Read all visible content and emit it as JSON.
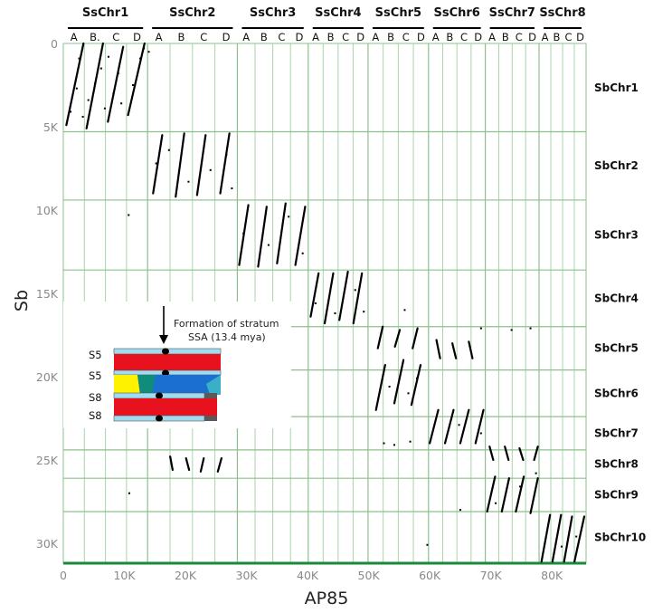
{
  "chart_data": {
    "type": "scatter",
    "xlabel": "AP85",
    "ylabel": "Sb",
    "xlim": [
      0,
      85600
    ],
    "ylim": [
      0,
      31200
    ],
    "y_inverted": true,
    "x_ticks": [
      {
        "value": 0,
        "label": "0"
      },
      {
        "value": 10000,
        "label": "10K"
      },
      {
        "value": 20000,
        "label": "20K"
      },
      {
        "value": 30000,
        "label": "30K"
      },
      {
        "value": 40000,
        "label": "40K"
      },
      {
        "value": 50000,
        "label": "50K"
      },
      {
        "value": 60000,
        "label": "60K"
      },
      {
        "value": 70000,
        "label": "70K"
      },
      {
        "value": 80000,
        "label": "80K"
      }
    ],
    "y_ticks": [
      {
        "value": 0,
        "label": "0"
      },
      {
        "value": 5000,
        "label": "5K"
      },
      {
        "value": 10000,
        "label": "10K"
      },
      {
        "value": 15000,
        "label": "15K"
      },
      {
        "value": 20000,
        "label": "20K"
      },
      {
        "value": 25000,
        "label": "25K"
      },
      {
        "value": 30000,
        "label": "30K"
      }
    ],
    "column_groups": [
      {
        "name": "SsChr1",
        "x_start": 0,
        "x_end": 13800,
        "subs": [
          "A",
          "B.",
          "C",
          "D"
        ]
      },
      {
        "name": "SsChr2",
        "x_start": 13800,
        "x_end": 28500,
        "subs": [
          "A",
          "B",
          "C",
          "D"
        ]
      },
      {
        "name": "SsChr3",
        "x_start": 28500,
        "x_end": 40100,
        "subs": [
          "A",
          "B",
          "C",
          "D"
        ]
      },
      {
        "name": "SsChr4",
        "x_start": 40100,
        "x_end": 49900,
        "subs": [
          "A",
          "B",
          "C",
          "D"
        ]
      },
      {
        "name": "SsChr5",
        "x_start": 49900,
        "x_end": 59800,
        "subs": [
          "A",
          "B",
          "C",
          "D"
        ]
      },
      {
        "name": "SsChr6",
        "x_start": 59800,
        "x_end": 69100,
        "subs": [
          "A",
          "B",
          "C",
          "D"
        ]
      },
      {
        "name": "SsChr7",
        "x_start": 69100,
        "x_end": 77900,
        "subs": [
          "A",
          "B",
          "C",
          "D"
        ]
      },
      {
        "name": "SsChr8",
        "x_start": 77900,
        "x_end": 85600,
        "subs": [
          "A",
          "B",
          "C",
          "D"
        ]
      }
    ],
    "row_groups": [
      {
        "name": "SbChr1",
        "y_start": 0,
        "y_end": 5300
      },
      {
        "name": "SbChr2",
        "y_start": 5300,
        "y_end": 9400
      },
      {
        "name": "SbChr3",
        "y_start": 9400,
        "y_end": 13600
      },
      {
        "name": "SbChr4",
        "y_start": 13600,
        "y_end": 17000
      },
      {
        "name": "SbChr5",
        "y_start": 17000,
        "y_end": 19600
      },
      {
        "name": "SbChr6",
        "y_start": 19600,
        "y_end": 22400
      },
      {
        "name": "SbChr7",
        "y_start": 22400,
        "y_end": 24400
      },
      {
        "name": "SbChr8",
        "y_start": 24400,
        "y_end": 26100
      },
      {
        "name": "SbChr9",
        "y_start": 26100,
        "y_end": 28100
      },
      {
        "name": "SbChr10",
        "y_start": 28100,
        "y_end": 31200
      }
    ],
    "segments": [
      {
        "x1": 500,
        "y1": 4900,
        "x2": 3300,
        "y2": 0
      },
      {
        "x1": 3800,
        "y1": 5100,
        "x2": 6500,
        "y2": 0
      },
      {
        "x1": 7300,
        "y1": 4700,
        "x2": 9800,
        "y2": 200
      },
      {
        "x1": 10600,
        "y1": 4300,
        "x2": 13300,
        "y2": 0
      },
      {
        "x1": 14700,
        "y1": 9000,
        "x2": 16200,
        "y2": 5500
      },
      {
        "x1": 18400,
        "y1": 9200,
        "x2": 19800,
        "y2": 5400
      },
      {
        "x1": 21900,
        "y1": 9100,
        "x2": 23300,
        "y2": 5500
      },
      {
        "x1": 25700,
        "y1": 9000,
        "x2": 27200,
        "y2": 5400
      },
      {
        "x1": 28800,
        "y1": 13300,
        "x2": 30300,
        "y2": 9700
      },
      {
        "x1": 31900,
        "y1": 13400,
        "x2": 33300,
        "y2": 9800
      },
      {
        "x1": 35000,
        "y1": 13200,
        "x2": 36400,
        "y2": 9600
      },
      {
        "x1": 38000,
        "y1": 13300,
        "x2": 39600,
        "y2": 9800
      },
      {
        "x1": 40500,
        "y1": 16400,
        "x2": 41800,
        "y2": 13800
      },
      {
        "x1": 42800,
        "y1": 16800,
        "x2": 44200,
        "y2": 13800
      },
      {
        "x1": 45200,
        "y1": 16600,
        "x2": 46600,
        "y2": 13700
      },
      {
        "x1": 47500,
        "y1": 16800,
        "x2": 48900,
        "y2": 13800
      },
      {
        "x1": 51200,
        "y1": 22000,
        "x2": 52700,
        "y2": 19300
      },
      {
        "x1": 54200,
        "y1": 21600,
        "x2": 55700,
        "y2": 19000
      },
      {
        "x1": 57000,
        "y1": 21700,
        "x2": 58500,
        "y2": 19300
      },
      {
        "x1": 51500,
        "y1": 18300,
        "x2": 52300,
        "y2": 17000
      },
      {
        "x1": 54300,
        "y1": 18200,
        "x2": 55100,
        "y2": 17200
      },
      {
        "x1": 57200,
        "y1": 18300,
        "x2": 58000,
        "y2": 17100
      },
      {
        "x1": 61100,
        "y1": 17800,
        "x2": 61700,
        "y2": 18900
      },
      {
        "x1": 63700,
        "y1": 18000,
        "x2": 64300,
        "y2": 18900
      },
      {
        "x1": 66400,
        "y1": 17900,
        "x2": 67000,
        "y2": 18900
      },
      {
        "x1": 60000,
        "y1": 24000,
        "x2": 61400,
        "y2": 22000
      },
      {
        "x1": 62500,
        "y1": 24000,
        "x2": 63900,
        "y2": 22000
      },
      {
        "x1": 65000,
        "y1": 24000,
        "x2": 66400,
        "y2": 22000
      },
      {
        "x1": 67500,
        "y1": 24000,
        "x2": 68800,
        "y2": 22000
      },
      {
        "x1": 69800,
        "y1": 24200,
        "x2": 70400,
        "y2": 25000
      },
      {
        "x1": 72300,
        "y1": 24200,
        "x2": 72900,
        "y2": 25000
      },
      {
        "x1": 74700,
        "y1": 24300,
        "x2": 75300,
        "y2": 25000
      },
      {
        "x1": 77100,
        "y1": 25000,
        "x2": 77700,
        "y2": 24200
      },
      {
        "x1": 69400,
        "y1": 28100,
        "x2": 70700,
        "y2": 26000
      },
      {
        "x1": 71800,
        "y1": 28100,
        "x2": 73000,
        "y2": 26100
      },
      {
        "x1": 74100,
        "y1": 28100,
        "x2": 75400,
        "y2": 26000
      },
      {
        "x1": 76500,
        "y1": 28200,
        "x2": 77700,
        "y2": 26100
      },
      {
        "x1": 78300,
        "y1": 31100,
        "x2": 79700,
        "y2": 28300
      },
      {
        "x1": 80100,
        "y1": 31100,
        "x2": 81500,
        "y2": 28300
      },
      {
        "x1": 82000,
        "y1": 31100,
        "x2": 83300,
        "y2": 28400
      },
      {
        "x1": 83700,
        "y1": 31100,
        "x2": 85300,
        "y2": 28400
      },
      {
        "x1": 17500,
        "y1": 24800,
        "x2": 17900,
        "y2": 25600
      },
      {
        "x1": 20100,
        "y1": 24900,
        "x2": 20600,
        "y2": 25600
      },
      {
        "x1": 22500,
        "y1": 25700,
        "x2": 23000,
        "y2": 24900
      },
      {
        "x1": 25300,
        "y1": 25700,
        "x2": 25900,
        "y2": 24900
      }
    ],
    "points": [
      {
        "x": 1200,
        "y": 4100
      },
      {
        "x": 2200,
        "y": 2700
      },
      {
        "x": 4100,
        "y": 3400
      },
      {
        "x": 5200,
        "y": 2400
      },
      {
        "x": 6200,
        "y": 1500
      },
      {
        "x": 7400,
        "y": 800
      },
      {
        "x": 8200,
        "y": 3000
      },
      {
        "x": 9000,
        "y": 1800
      },
      {
        "x": 11400,
        "y": 2500
      },
      {
        "x": 12600,
        "y": 900
      },
      {
        "x": 14000,
        "y": 500
      },
      {
        "x": 13200,
        "y": 300
      },
      {
        "x": 2600,
        "y": 900
      },
      {
        "x": 6800,
        "y": 3900
      },
      {
        "x": 9500,
        "y": 3600
      },
      {
        "x": 3200,
        "y": 4400
      },
      {
        "x": 15200,
        "y": 7200
      },
      {
        "x": 17300,
        "y": 6400
      },
      {
        "x": 20500,
        "y": 8300
      },
      {
        "x": 24100,
        "y": 7600
      },
      {
        "x": 26700,
        "y": 6700
      },
      {
        "x": 27600,
        "y": 8700
      },
      {
        "x": 10700,
        "y": 10300
      },
      {
        "x": 29500,
        "y": 11400
      },
      {
        "x": 33600,
        "y": 12100
      },
      {
        "x": 36900,
        "y": 10400
      },
      {
        "x": 39200,
        "y": 12600
      },
      {
        "x": 41300,
        "y": 15600
      },
      {
        "x": 44500,
        "y": 16200
      },
      {
        "x": 47800,
        "y": 14800
      },
      {
        "x": 49200,
        "y": 16100
      },
      {
        "x": 55900,
        "y": 16000
      },
      {
        "x": 53400,
        "y": 20600
      },
      {
        "x": 57900,
        "y": 20100
      },
      {
        "x": 56500,
        "y": 21000
      },
      {
        "x": 68400,
        "y": 17100
      },
      {
        "x": 73400,
        "y": 17200
      },
      {
        "x": 76500,
        "y": 17100
      },
      {
        "x": 52500,
        "y": 24000
      },
      {
        "x": 54200,
        "y": 24100
      },
      {
        "x": 56800,
        "y": 23900
      },
      {
        "x": 64800,
        "y": 22900
      },
      {
        "x": 68400,
        "y": 23400
      },
      {
        "x": 70800,
        "y": 27600
      },
      {
        "x": 74800,
        "y": 26600
      },
      {
        "x": 77400,
        "y": 25800
      },
      {
        "x": 65000,
        "y": 28000
      },
      {
        "x": 10800,
        "y": 27000
      },
      {
        "x": 59600,
        "y": 30100
      },
      {
        "x": 81600,
        "y": 30200
      },
      {
        "x": 84000,
        "y": 29600
      }
    ],
    "inset": {
      "title_line1": "Formation of stratum",
      "title_line2": "SSA (13.4 mya)",
      "rows": [
        "S5",
        "S5",
        "S8",
        "S8"
      ],
      "colors": {
        "red": "#e8111e",
        "blue": "#1b6fd0",
        "teal": "#0f8c7a",
        "yellow": "#fff200",
        "cap": "#9fdcf0",
        "grey": "#5a5a5a"
      }
    },
    "colors": {
      "marks": "#000000",
      "grid_major": "#8dc08d",
      "grid_minor": "#a9d4a9",
      "baseline": "#1a8a3a"
    }
  }
}
